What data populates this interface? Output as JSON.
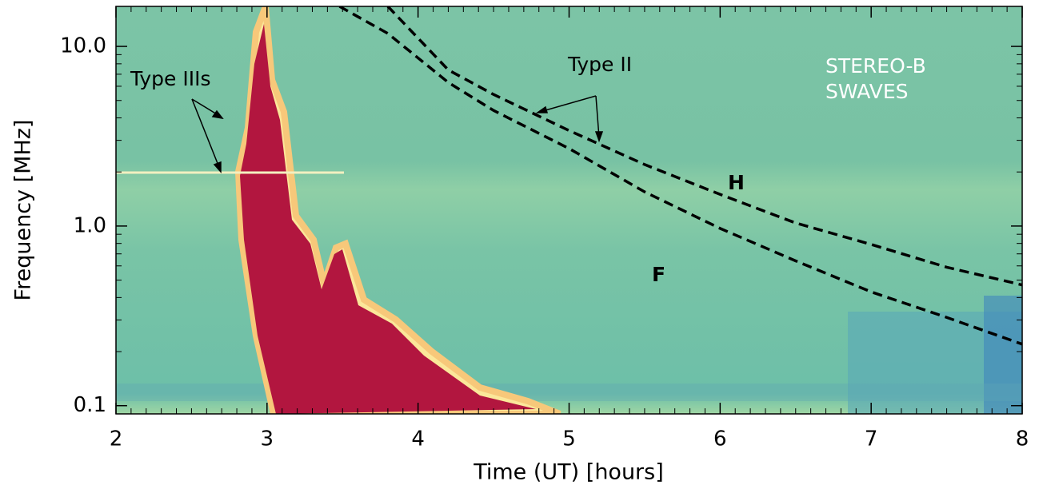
{
  "chart_data": {
    "type": "line",
    "xlabel": "Time (UT) [hours]",
    "ylabel": "Frequency [MHz]",
    "xlim": [
      2,
      8
    ],
    "xticks": [
      2,
      3,
      4,
      5,
      6,
      7,
      8
    ],
    "ylim": [
      0.09,
      16.7
    ],
    "yticks": [
      0.1,
      {
        "value": 1,
        "label": "1.0"
      },
      {
        "value": 10,
        "label": "10.0"
      }
    ],
    "log_y": true,
    "annotations": [
      "Type IIIs",
      "Type II",
      "STEREO-B",
      "SWAVES"
    ],
    "series": [
      {
        "name": "H",
        "color": "#000000",
        "x": [
          3.8,
          4.2,
          4.5,
          5,
          5.5,
          6,
          6.5,
          7,
          7.5,
          8
        ],
        "values": [
          16.7,
          7.4,
          5.4,
          3.4,
          2.2,
          1.5,
          1.04,
          0.79,
          0.59,
          0.47
        ]
      },
      {
        "name": "F",
        "color": "#000000",
        "x": [
          3.48,
          3.8,
          4.2,
          4.5,
          5,
          5.5,
          6,
          6.5,
          7,
          7.5,
          8
        ],
        "values": [
          16.7,
          11.8,
          6.3,
          4.4,
          2.7,
          1.55,
          0.97,
          0.64,
          0.43,
          0.31,
          0.22
        ]
      }
    ]
  }
}
